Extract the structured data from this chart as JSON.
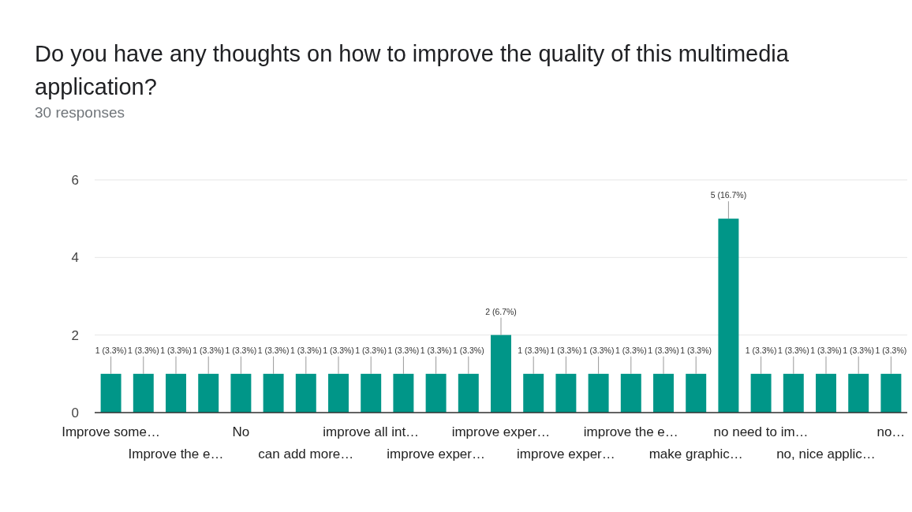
{
  "chart_data": {
    "type": "bar",
    "title": "Do you have any thoughts on how to improve the quality of this multimedia application?",
    "subtitle": "30 responses",
    "categories": [
      "Improve some…",
      null,
      "Improve the e…",
      null,
      "No",
      null,
      "can add more…",
      null,
      "improve all int…",
      null,
      "improve exper…",
      null,
      "improve exper…",
      null,
      "improve exper…",
      null,
      "improve the e…",
      null,
      "make graphic…",
      null,
      "no need to im…",
      null,
      "no, nice applic…",
      null,
      "no…"
    ],
    "values": [
      1,
      1,
      1,
      1,
      1,
      1,
      1,
      1,
      1,
      1,
      1,
      1,
      2,
      1,
      1,
      1,
      1,
      1,
      1,
      5,
      1,
      1,
      1,
      1,
      1
    ],
    "value_labels": [
      "1 (3.3%)",
      "1 (3.3%)",
      "1 (3.3%)",
      "1 (3.3%)",
      "1 (3.3%)",
      "1 (3.3%)",
      "1 (3.3%)",
      "1 (3.3%)",
      "1 (3.3%)",
      "1 (3.3%)",
      "1 (3.3%)",
      "1 (3.3%)",
      "2 (6.7%)",
      "1 (3.3%)",
      "1 (3.3%)",
      "1 (3.3%)",
      "1 (3.3%)",
      "1 (3.3%)",
      "1 (3.3%)",
      "5 (16.7%)",
      "1 (3.3%)",
      "1 (3.3%)",
      "1 (3.3%)",
      "1 (3.3%)",
      "1 (3.3%)"
    ],
    "color": "#009688",
    "ylim": [
      0,
      6
    ],
    "yticks": [
      0,
      2,
      4,
      6
    ],
    "grid": "y"
  }
}
